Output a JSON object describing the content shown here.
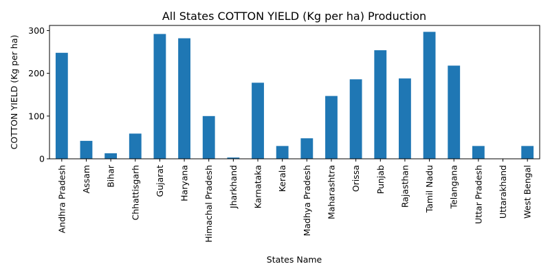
{
  "chart_data": {
    "type": "bar",
    "title": "All States COTTON YIELD (Kg per ha) Production",
    "xlabel": "States Name",
    "ylabel": "COTTON YIELD (Kg per ha)",
    "ylim": [
      0,
      312
    ],
    "yticks": [
      0,
      100,
      200,
      300
    ],
    "grid": false,
    "bar_color": "#1f77b4",
    "categories": [
      "Andhra Pradesh",
      "Assam",
      "Bihar",
      "Chhattisgarh",
      "Gujarat",
      "Haryana",
      "Himachal Pradesh",
      "Jharkhand",
      "Karnataka",
      "Kerala",
      "Madhya Pradesh",
      "Maharashtra",
      "Orissa",
      "Punjab",
      "Rajasthan",
      "Tamil Nadu",
      "Telangana",
      "Uttar Pradesh",
      "Uttarakhand",
      "West Bengal"
    ],
    "values": [
      248,
      42,
      13,
      59,
      292,
      282,
      100,
      3,
      178,
      30,
      48,
      147,
      186,
      254,
      188,
      297,
      218,
      30,
      0,
      30
    ]
  }
}
